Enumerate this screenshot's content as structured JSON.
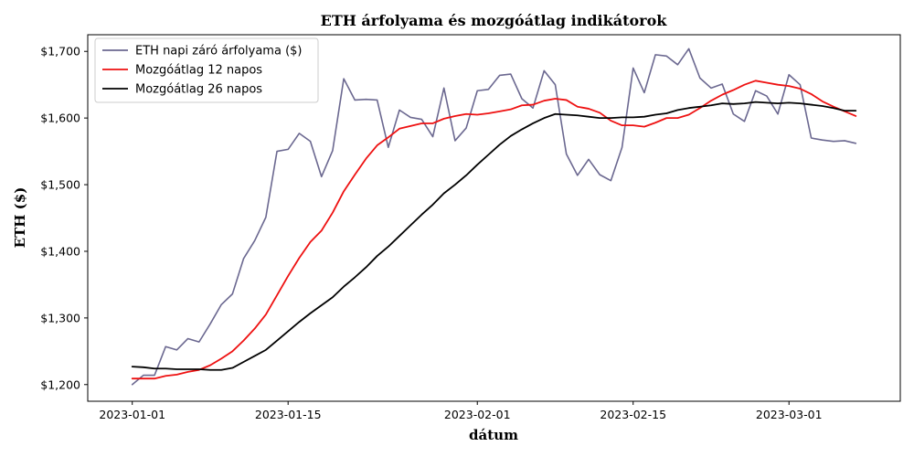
{
  "chart_data": {
    "type": "line",
    "title": "ETH árfolyama és mozgóátlag indikátorok",
    "xlabel": "dátum",
    "ylabel": "ETH ($)",
    "x_start": "2023-01-01",
    "x_end": "2023-03-07",
    "xlim": [
      "2022-12-28",
      "2023-03-11"
    ],
    "ylim": [
      1175,
      1725
    ],
    "x_ticks": [
      {
        "date": "2023-01-01",
        "label": "2023-01-01"
      },
      {
        "date": "2023-01-15",
        "label": "2023-01-15"
      },
      {
        "date": "2023-02-01",
        "label": "2023-02-01"
      },
      {
        "date": "2023-02-15",
        "label": "2023-02-15"
      },
      {
        "date": "2023-03-01",
        "label": "2023-03-01"
      }
    ],
    "y_ticks": [
      {
        "value": 1200,
        "label": "$1,200"
      },
      {
        "value": 1300,
        "label": "$1,300"
      },
      {
        "value": 1400,
        "label": "$1,400"
      },
      {
        "value": 1500,
        "label": "$1,500"
      },
      {
        "value": 1600,
        "label": "$1,600"
      },
      {
        "value": 1700,
        "label": "$1,700"
      }
    ],
    "grid": false,
    "legend_position": "top-left",
    "series": [
      {
        "name": "ETH napi záró árfolyama ($)",
        "color": "#6b6890",
        "values": [
          1200,
          1214,
          1214,
          1257,
          1252,
          1269,
          1264,
          1291,
          1320,
          1336,
          1389,
          1416,
          1451,
          1550,
          1553,
          1577,
          1565,
          1512,
          1551,
          1659,
          1627,
          1628,
          1627,
          1556,
          1612,
          1601,
          1598,
          1572,
          1645,
          1566,
          1585,
          1641,
          1643,
          1664,
          1666,
          1629,
          1615,
          1671,
          1650,
          1546,
          1514,
          1538,
          1515,
          1506,
          1556,
          1675,
          1638,
          1695,
          1693,
          1680,
          1704,
          1660,
          1645,
          1651,
          1606,
          1595,
          1641,
          1633,
          1606,
          1665,
          1650,
          1570,
          1567,
          1565,
          1566,
          1562
        ]
      },
      {
        "name": "Mozgóátlag 12 napos",
        "color": "#ee1111",
        "values": [
          1209,
          1209,
          1209,
          1213,
          1215,
          1219,
          1222,
          1229,
          1239,
          1250,
          1266,
          1284,
          1305,
          1334,
          1363,
          1390,
          1414,
          1431,
          1458,
          1490,
          1515,
          1539,
          1559,
          1571,
          1584,
          1588,
          1592,
          1592,
          1599,
          1603,
          1606,
          1605,
          1607,
          1610,
          1613,
          1619,
          1620,
          1626,
          1629,
          1627,
          1617,
          1614,
          1608,
          1596,
          1589,
          1589,
          1587,
          1593,
          1600,
          1600,
          1605,
          1615,
          1626,
          1635,
          1642,
          1650,
          1656,
          1653,
          1650,
          1648,
          1644,
          1636,
          1625,
          1617,
          1610,
          1603
        ]
      },
      {
        "name": "Mozgóátlag 26 napos",
        "color": "#000000",
        "values": [
          1227,
          1226,
          1224,
          1224,
          1223,
          1223,
          1223,
          1222,
          1222,
          1225,
          1234,
          1243,
          1252,
          1266,
          1280,
          1294,
          1307,
          1319,
          1331,
          1347,
          1361,
          1376,
          1393,
          1407,
          1423,
          1439,
          1455,
          1470,
          1487,
          1500,
          1514,
          1530,
          1545,
          1560,
          1573,
          1583,
          1592,
          1600,
          1606,
          1605,
          1604,
          1602,
          1600,
          1600,
          1601,
          1601,
          1602,
          1605,
          1607,
          1612,
          1615,
          1617,
          1619,
          1622,
          1621,
          1622,
          1624,
          1623,
          1622,
          1623,
          1622,
          1620,
          1618,
          1615,
          1611,
          1611
        ]
      }
    ]
  }
}
